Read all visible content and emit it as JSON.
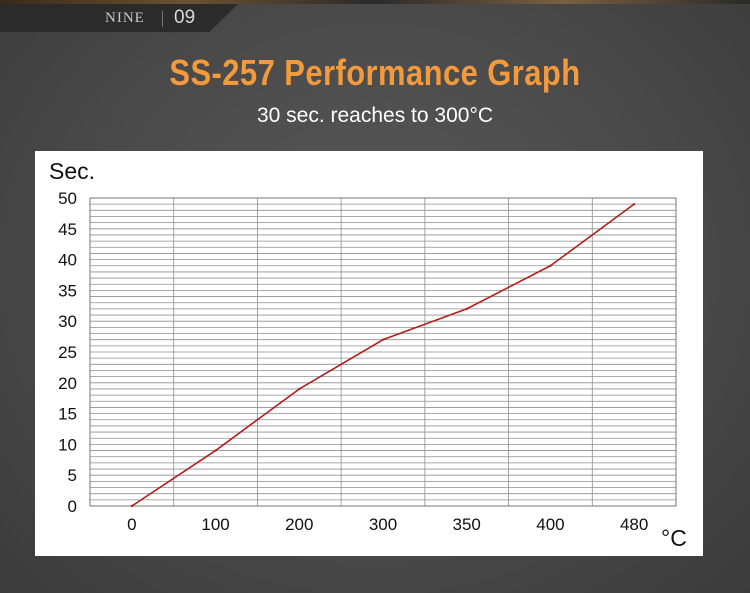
{
  "header": {
    "brand": "NINE",
    "page_number": "09"
  },
  "title": "SS-257 Performance Graph",
  "subtitle": "30 sec. reaches to 300°C",
  "chart_data": {
    "type": "line",
    "categories": [
      "0",
      "100",
      "200",
      "300",
      "350",
      "400",
      "480"
    ],
    "series": [
      {
        "values": [
          0,
          9,
          19,
          27,
          32,
          39,
          49
        ]
      }
    ],
    "ylabel": "Sec.",
    "xlabel": "°C",
    "ylim": [
      0,
      50
    ],
    "y_ticks": [
      0,
      5,
      10,
      15,
      20,
      25,
      30,
      35,
      40,
      45,
      50
    ],
    "grid": true,
    "line_color": "#b01e1e"
  }
}
